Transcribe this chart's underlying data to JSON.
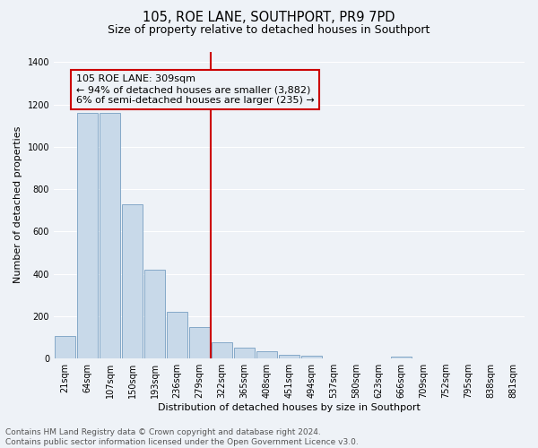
{
  "title": "105, ROE LANE, SOUTHPORT, PR9 7PD",
  "subtitle": "Size of property relative to detached houses in Southport",
  "xlabel": "Distribution of detached houses by size in Southport",
  "ylabel": "Number of detached properties",
  "bar_labels": [
    "21sqm",
    "64sqm",
    "107sqm",
    "150sqm",
    "193sqm",
    "236sqm",
    "279sqm",
    "322sqm",
    "365sqm",
    "408sqm",
    "451sqm",
    "494sqm",
    "537sqm",
    "580sqm",
    "623sqm",
    "666sqm",
    "709sqm",
    "752sqm",
    "795sqm",
    "838sqm",
    "881sqm"
  ],
  "bar_values": [
    107,
    1160,
    1160,
    730,
    420,
    220,
    150,
    75,
    50,
    33,
    18,
    13,
    0,
    0,
    0,
    8,
    0,
    0,
    0,
    0,
    0
  ],
  "bar_color": "#c8d9e9",
  "bar_edge_color": "#85a9c8",
  "vline_x_idx": 7,
  "vline_color": "#cc0000",
  "annotation_text": "105 ROE LANE: 309sqm\n← 94% of detached houses are smaller (3,882)\n6% of semi-detached houses are larger (235) →",
  "annotation_box_edge_color": "#cc0000",
  "annotation_box_face_color": "#eef2f7",
  "ylim": [
    0,
    1450
  ],
  "yticks": [
    0,
    200,
    400,
    600,
    800,
    1000,
    1200,
    1400
  ],
  "footer_line1": "Contains HM Land Registry data © Crown copyright and database right 2024.",
  "footer_line2": "Contains public sector information licensed under the Open Government Licence v3.0.",
  "background_color": "#eef2f7",
  "grid_color": "#ffffff",
  "title_fontsize": 10.5,
  "subtitle_fontsize": 9,
  "axis_label_fontsize": 8,
  "tick_fontsize": 7,
  "annotation_fontsize": 8,
  "footer_fontsize": 6.5
}
